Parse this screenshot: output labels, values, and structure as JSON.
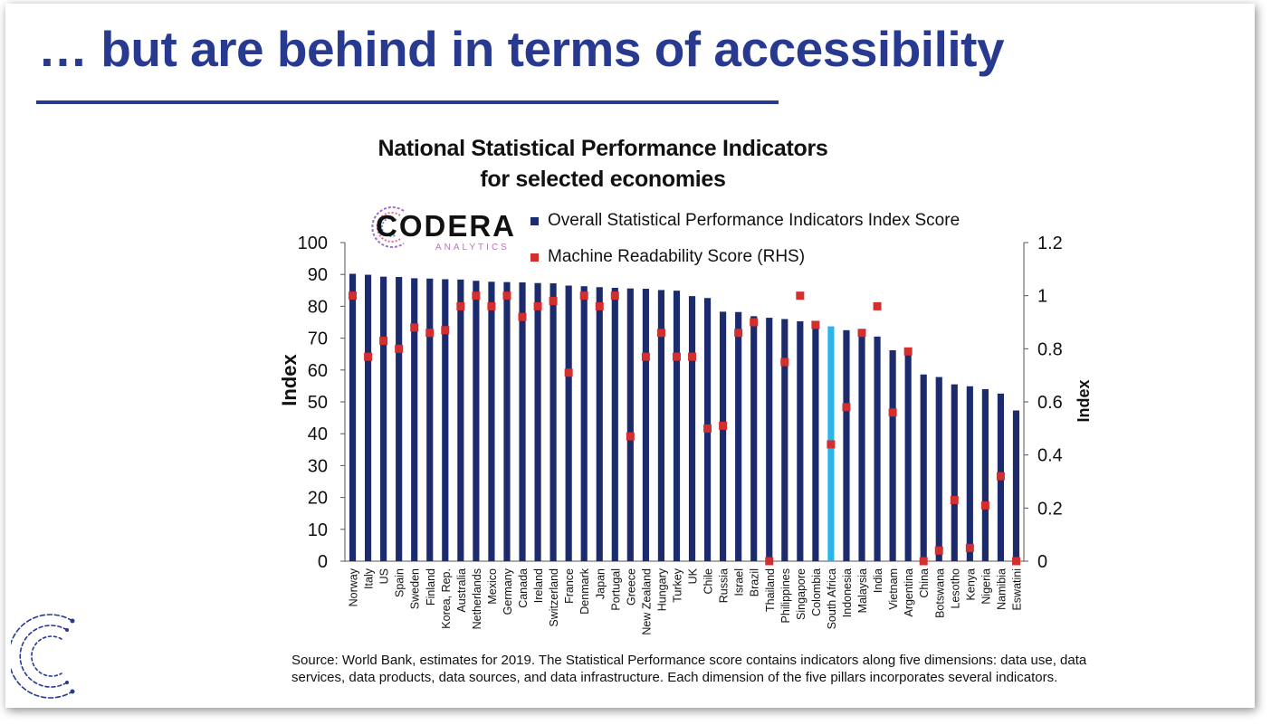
{
  "slide": {
    "title": "… but are behind in terms of accessibility"
  },
  "logo": {
    "name": "CODERA",
    "subtitle": "ANALYTICS"
  },
  "colors": {
    "title": "#283a8f",
    "bar": "#1c2a6e",
    "highlight_bar": "#29b5ea",
    "marker": "#d32f2f"
  },
  "chart_data": {
    "type": "bar",
    "title": "National Statistical Performance Indicators\nfor selected economies",
    "title_lines": [
      "National Statistical Performance Indicators",
      "for selected economies"
    ],
    "ylabel": "Index",
    "y2label": "Index",
    "ylim": [
      0,
      100
    ],
    "y_ticks": [
      0,
      10,
      20,
      30,
      40,
      50,
      60,
      70,
      80,
      90,
      100
    ],
    "y2lim": [
      0,
      1.2
    ],
    "y2_ticks": [
      "0",
      "0.2",
      "0.4",
      "0.6",
      "0.8",
      "1",
      "1.2"
    ],
    "legend_position": "top",
    "highlight_category": "South Africa",
    "categories": [
      "Norway",
      "Italy",
      "US",
      "Spain",
      "Sweden",
      "Finland",
      "Korea, Rep.",
      "Australia",
      "Netherlands",
      "Mexico",
      "Germany",
      "Canada",
      "Ireland",
      "Switzerland",
      "France",
      "Denmark",
      "Japan",
      "Portugal",
      "Greece",
      "New Zealand",
      "Hungary",
      "Turkey",
      "UK",
      "Chile",
      "Russia",
      "Israel",
      "Brazil",
      "Thailand",
      "Philippines",
      "Singapore",
      "Colombia",
      "South Africa",
      "Indonesia",
      "Malaysia",
      "India",
      "Vietnam",
      "Argentina",
      "China",
      "Botswana",
      "Lesotho",
      "Kenya",
      "Nigeria",
      "Namibia",
      "Eswatini"
    ],
    "series": [
      {
        "name": "Overall Statistical Performance Indicators Index Score",
        "type": "bar",
        "axis": "left",
        "values": [
          90.2,
          89.9,
          89.3,
          89.2,
          88.8,
          88.7,
          88.5,
          88.4,
          88.0,
          87.7,
          87.6,
          87.5,
          87.3,
          87.2,
          86.5,
          86.3,
          86.0,
          85.8,
          85.6,
          85.5,
          85.1,
          84.9,
          83.2,
          82.6,
          78.3,
          78.2,
          76.9,
          76.4,
          76.0,
          75.3,
          75.2,
          73.7,
          72.5,
          72.3,
          70.5,
          66.2,
          65.0,
          58.6,
          57.8,
          55.5,
          54.9,
          54.0,
          52.6,
          47.3
        ]
      },
      {
        "name": "Machine Readability Score (RHS)",
        "type": "scatter",
        "axis": "right",
        "values": [
          1.0,
          0.77,
          0.83,
          0.8,
          0.88,
          0.86,
          0.87,
          0.96,
          1.0,
          0.96,
          1.0,
          0.92,
          0.96,
          0.98,
          0.71,
          1.0,
          0.96,
          1.0,
          0.47,
          0.77,
          0.86,
          0.77,
          0.77,
          0.5,
          0.51,
          0.86,
          0.9,
          0.0,
          0.75,
          1.0,
          0.89,
          0.44,
          0.58,
          0.86,
          0.96,
          0.56,
          0.79,
          0.0,
          0.04,
          0.23,
          0.05,
          0.21,
          0.32,
          0.0
        ]
      }
    ]
  },
  "source_note": "Source: World Bank, estimates for 2019. The Statistical Performance score contains indicators along five dimensions: data use, data services, data products, data sources, and data infrastructure. Each dimension of the five pillars incorporates several indicators."
}
